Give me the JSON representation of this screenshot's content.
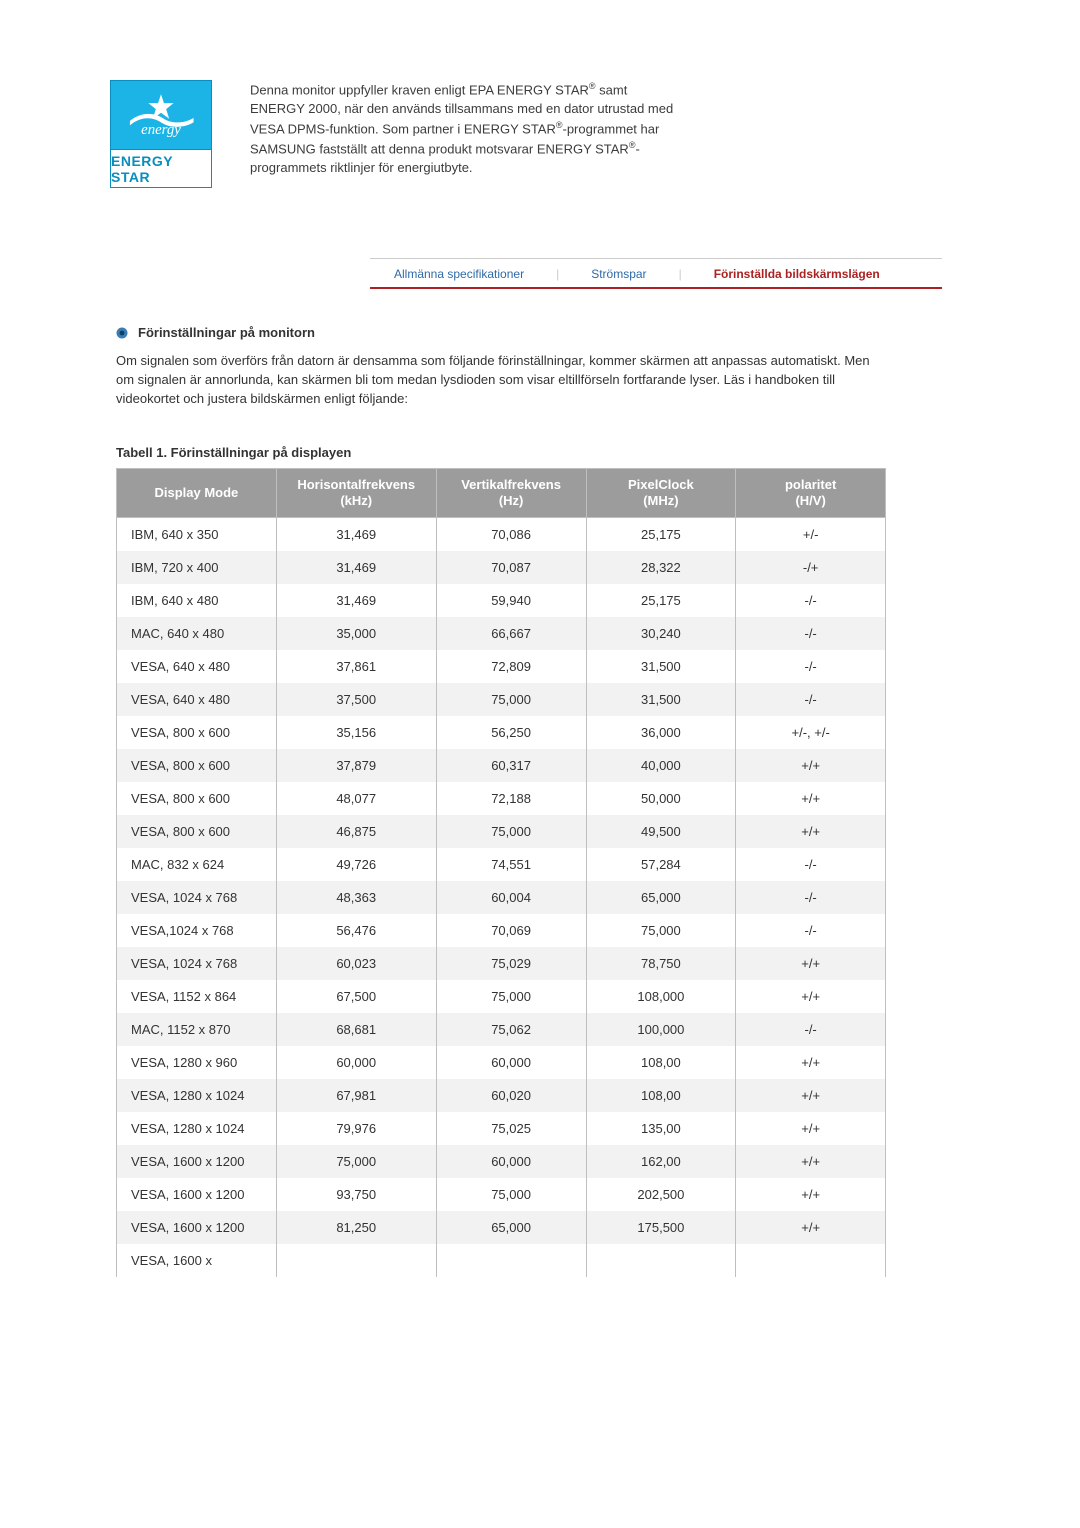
{
  "energy_star": {
    "label": "ENERGY STAR",
    "logo_bg": "#1cb4e6",
    "logo_border": "#0a8ebd",
    "logo_text_color": "#0a8ebd"
  },
  "intro_text_html": "Denna monitor uppfyller kraven enligt EPA ENERGY STAR<sup>®</sup> samt ENERGY 2000, när den används tillsammans med en dator utrustad med VESA DPMS-funktion. Som partner i ENERGY STAR<sup>®</sup>-programmet har SAMSUNG fastställt att denna produkt motsvarar ENERGY STAR<sup>®</sup>-programmets riktlinjer för energiutbyte.",
  "tabs": [
    {
      "label": "Allmänna specifikationer",
      "active": false
    },
    {
      "label": "Strömspar",
      "active": false
    },
    {
      "label": "Förinställda bildskärmslägen",
      "active": true
    }
  ],
  "section_title": "Förinställningar på monitorn",
  "section_body": "Om signalen som överförs från datorn är densamma som följande förinställningar, kommer skärmen att anpassas automatiskt. Men om signalen är annorlunda, kan skärmen bli tom medan lysdioden som visar eltillförseln fortfarande lyser. Läs i handboken till videokortet och justera bildskärmen enligt följande:",
  "table": {
    "caption": "Tabell 1. Förinställningar på displayen",
    "header_bg": "#9c9c9c",
    "header_fg": "#ffffff",
    "border_color": "#bfbfbf",
    "row_alt_bg": "#f2f2f2",
    "columns": [
      "Display Mode",
      "Horisontalfrekvens (kHz)",
      "Vertikalfrekvens (Hz)",
      "PixelClock (MHz)",
      "polaritet (H/V)"
    ],
    "col_widths": [
      "160px",
      "160px",
      "150px",
      "150px",
      "150px"
    ],
    "rows": [
      [
        "IBM, 640 x 350",
        "31,469",
        "70,086",
        "25,175",
        "+/-"
      ],
      [
        "IBM, 720 x 400",
        "31,469",
        "70,087",
        "28,322",
        "-/+"
      ],
      [
        "IBM, 640 x 480",
        "31,469",
        "59,940",
        "25,175",
        "-/-"
      ],
      [
        "MAC, 640 x 480",
        "35,000",
        "66,667",
        "30,240",
        "-/-"
      ],
      [
        "VESA, 640 x 480",
        "37,861",
        "72,809",
        "31,500",
        "-/-"
      ],
      [
        "VESA, 640 x 480",
        "37,500",
        "75,000",
        "31,500",
        "-/-"
      ],
      [
        "VESA, 800 x 600",
        "35,156",
        "56,250",
        "36,000",
        "+/-, +/-"
      ],
      [
        "VESA, 800 x 600",
        "37,879",
        "60,317",
        "40,000",
        "+/+"
      ],
      [
        "VESA, 800 x 600",
        "48,077",
        "72,188",
        "50,000",
        "+/+"
      ],
      [
        "VESA, 800 x 600",
        "46,875",
        "75,000",
        "49,500",
        "+/+"
      ],
      [
        "MAC, 832 x 624",
        "49,726",
        "74,551",
        "57,284",
        "-/-"
      ],
      [
        "VESA, 1024 x 768",
        "48,363",
        "60,004",
        "65,000",
        "-/-"
      ],
      [
        "VESA,1024 x 768",
        "56,476",
        "70,069",
        "75,000",
        "-/-"
      ],
      [
        "VESA, 1024 x 768",
        "60,023",
        "75,029",
        "78,750",
        "+/+"
      ],
      [
        "VESA, 1152 x 864",
        "67,500",
        "75,000",
        "108,000",
        "+/+"
      ],
      [
        "MAC, 1152 x 870",
        "68,681",
        "75,062",
        "100,000",
        "-/-"
      ],
      [
        "VESA, 1280 x 960",
        "60,000",
        "60,000",
        "108,00",
        "+/+"
      ],
      [
        "VESA, 1280 x 1024",
        "67,981",
        "60,020",
        "108,00",
        "+/+"
      ],
      [
        "VESA, 1280 x 1024",
        "79,976",
        "75,025",
        "135,00",
        "+/+"
      ],
      [
        "VESA, 1600 x 1200",
        "75,000",
        "60,000",
        "162,00",
        "+/+"
      ],
      [
        "VESA, 1600 x 1200",
        "93,750",
        "75,000",
        "202,500",
        "+/+"
      ],
      [
        "VESA, 1600 x 1200",
        "81,250",
        "65,000",
        "175,500",
        "+/+"
      ],
      [
        "VESA, 1600 x",
        "",
        "",
        "",
        ""
      ]
    ]
  },
  "nav_colors": {
    "normal": "#2d6aa9",
    "active": "#aa2222",
    "border_top": "#cccccc"
  }
}
